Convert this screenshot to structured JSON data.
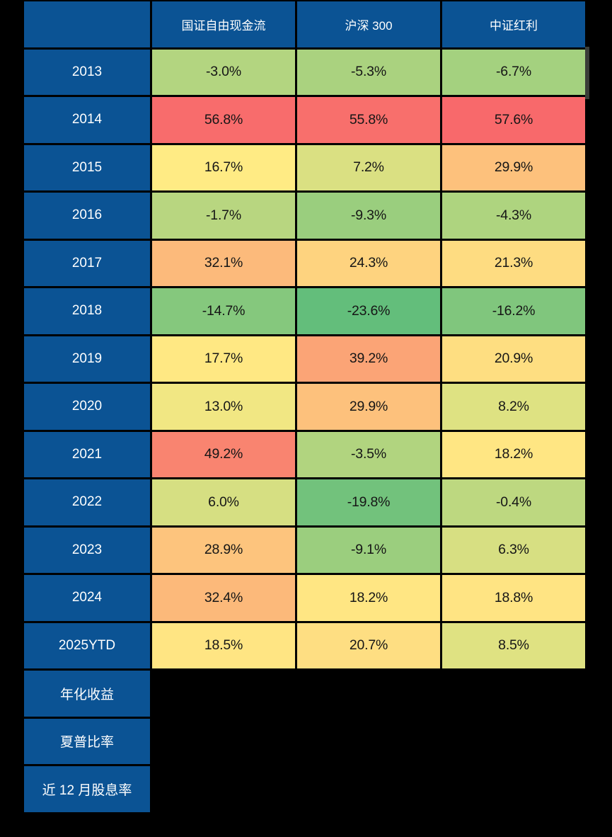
{
  "table": {
    "corner_label": "",
    "header_bg": "#0B5394",
    "grid_bg": "#000000",
    "columns": [
      "国证自由现金流",
      "沪深 300",
      "中证红利"
    ],
    "rows": [
      {
        "label": "2013",
        "values": [
          "-3.0%",
          "-5.3%",
          "-6.7%"
        ],
        "colors": [
          "#B3D580",
          "#AAD27F",
          "#A4D17F"
        ]
      },
      {
        "label": "2014",
        "values": [
          "56.8%",
          "55.8%",
          "57.6%"
        ],
        "colors": [
          "#F86C6C",
          "#F86F6C",
          "#F8696B"
        ]
      },
      {
        "label": "2015",
        "values": [
          "16.7%",
          "7.2%",
          "29.9%"
        ],
        "colors": [
          "#FFEB84",
          "#DAE082",
          "#FDC17C"
        ]
      },
      {
        "label": "2016",
        "values": [
          "-1.7%",
          "-9.3%",
          "-4.3%"
        ],
        "colors": [
          "#B8D680",
          "#9ACE7E",
          "#AED47F"
        ]
      },
      {
        "label": "2017",
        "values": [
          "32.1%",
          "24.3%",
          "21.3%"
        ],
        "colors": [
          "#FCBA7B",
          "#FED37F",
          "#FEDC81"
        ]
      },
      {
        "label": "2018",
        "values": [
          "-14.7%",
          "-23.6%",
          "-16.2%"
        ],
        "colors": [
          "#85C87D",
          "#63BE7B",
          "#80C67D"
        ]
      },
      {
        "label": "2019",
        "values": [
          "17.7%",
          "39.2%",
          "20.9%"
        ],
        "colors": [
          "#FFE883",
          "#FBA476",
          "#FEDE81"
        ]
      },
      {
        "label": "2020",
        "values": [
          "13.0%",
          "29.9%",
          "8.2%"
        ],
        "colors": [
          "#F1E783",
          "#FDC17C",
          "#DEE282"
        ]
      },
      {
        "label": "2021",
        "values": [
          "49.2%",
          "-3.5%",
          "18.2%"
        ],
        "colors": [
          "#F98470",
          "#B1D47F",
          "#FFE683"
        ]
      },
      {
        "label": "2022",
        "values": [
          "6.0%",
          "-19.8%",
          "-0.4%"
        ],
        "colors": [
          "#D6DF82",
          "#72C27C",
          "#BDD880"
        ]
      },
      {
        "label": "2023",
        "values": [
          "28.9%",
          "-9.1%",
          "6.3%"
        ],
        "colors": [
          "#FDC47D",
          "#9BCE7E",
          "#D7DF82"
        ]
      },
      {
        "label": "2024",
        "values": [
          "32.4%",
          "18.2%",
          "18.8%"
        ],
        "colors": [
          "#FCB97A",
          "#FFE683",
          "#FFE483"
        ]
      },
      {
        "label": "2025YTD",
        "values": [
          "18.5%",
          "20.7%",
          "8.5%"
        ],
        "colors": [
          "#FFE583",
          "#FEDE82",
          "#DFE282"
        ]
      },
      {
        "label": "年化收益",
        "values": [],
        "colors": []
      },
      {
        "label": "夏普比率",
        "values": [],
        "colors": []
      },
      {
        "label": "近 12 月股息率",
        "values": [],
        "colors": []
      }
    ]
  },
  "chart_data": {
    "type": "heatmap",
    "title": "",
    "columns": [
      "国证自由现金流",
      "沪深 300",
      "中证红利"
    ],
    "rows": [
      "2013",
      "2014",
      "2015",
      "2016",
      "2017",
      "2018",
      "2019",
      "2020",
      "2021",
      "2022",
      "2023",
      "2024",
      "2025YTD",
      "年化收益",
      "夏普比率",
      "近 12 月股息率"
    ],
    "values_pct": [
      [
        -3.0,
        -5.3,
        -6.7
      ],
      [
        56.8,
        55.8,
        57.6
      ],
      [
        16.7,
        7.2,
        29.9
      ],
      [
        -1.7,
        -9.3,
        -4.3
      ],
      [
        32.1,
        24.3,
        21.3
      ],
      [
        -14.7,
        -23.6,
        -16.2
      ],
      [
        17.7,
        39.2,
        20.9
      ],
      [
        13.0,
        29.9,
        8.2
      ],
      [
        49.2,
        -3.5,
        18.2
      ],
      [
        6.0,
        -19.8,
        -0.4
      ],
      [
        28.9,
        -9.1,
        6.3
      ],
      [
        32.4,
        18.2,
        18.8
      ],
      [
        18.5,
        20.7,
        8.5
      ],
      [
        null,
        null,
        null
      ],
      [
        null,
        null,
        null
      ],
      [
        null,
        null,
        null
      ]
    ],
    "color_scale": {
      "min": {
        "value": -23.6,
        "color": "#63BE7B"
      },
      "mid": {
        "value": 16.7,
        "color": "#FFEB84"
      },
      "max": {
        "value": 57.6,
        "color": "#F8696B"
      }
    },
    "legend_position": "none",
    "grid": "black gridlines, dark-blue label row/column"
  }
}
